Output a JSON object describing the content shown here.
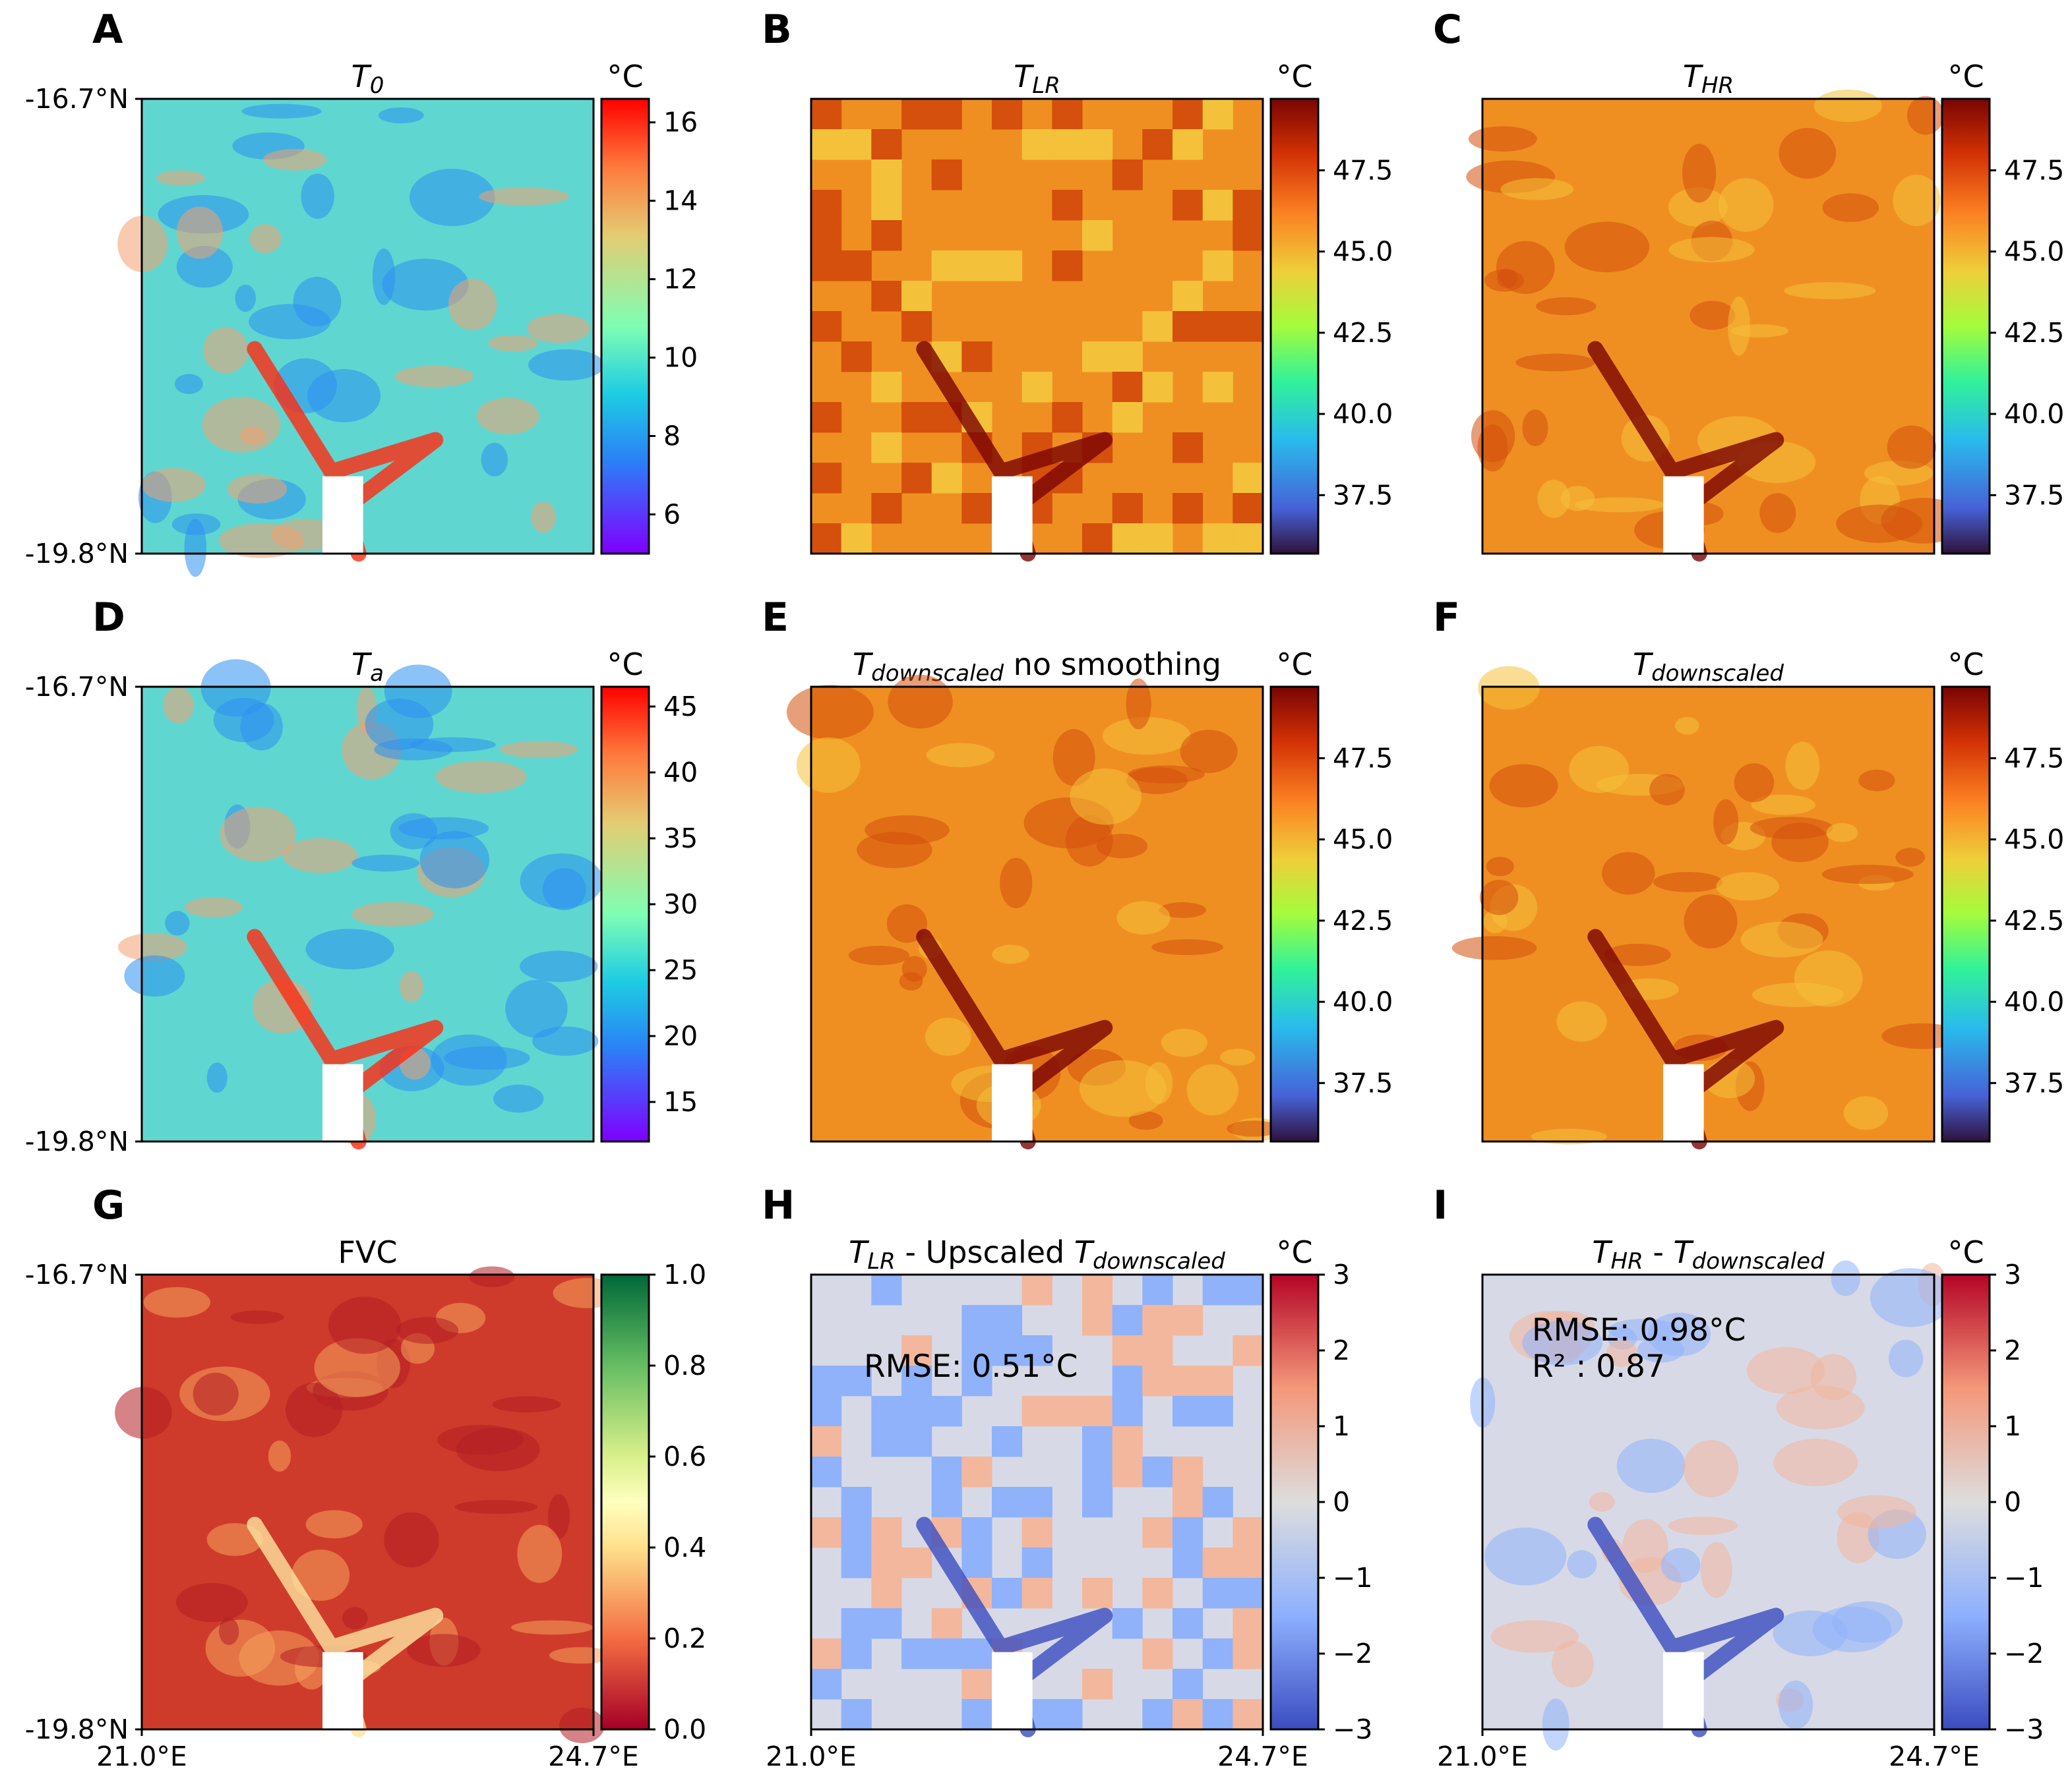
{
  "chart_data": [
    {
      "type": "heatmap",
      "panel": "A",
      "title": "T",
      "title_sub": "0",
      "colormap": "rainbow",
      "unit": "°C",
      "colorbar_ticks": [
        "16",
        "14",
        "12",
        "10",
        "8",
        "6"
      ],
      "colorbar_range": [
        5,
        16.6
      ],
      "ylabels": [
        "-16.7°N",
        "-19.8°N"
      ],
      "xlabels": []
    },
    {
      "type": "heatmap",
      "panel": "B",
      "title": "T",
      "title_sub": "LR",
      "colormap": "turbo",
      "unit": "°C",
      "colorbar_ticks": [
        "47.5",
        "45.0",
        "42.5",
        "40.0",
        "37.5"
      ],
      "colorbar_range": [
        35.7,
        49.7
      ],
      "ylabels": [],
      "xlabels": []
    },
    {
      "type": "heatmap",
      "panel": "C",
      "title": "T",
      "title_sub": "HR",
      "colormap": "turbo",
      "unit": "°C",
      "colorbar_ticks": [
        "47.5",
        "45.0",
        "42.5",
        "40.0",
        "37.5"
      ],
      "colorbar_range": [
        35.7,
        49.7
      ],
      "ylabels": [],
      "xlabels": []
    },
    {
      "type": "heatmap",
      "panel": "D",
      "title": "T",
      "title_sub": "a",
      "colormap": "rainbow",
      "unit": "°C",
      "colorbar_ticks": [
        "45",
        "40",
        "35",
        "30",
        "25",
        "20",
        "15"
      ],
      "colorbar_range": [
        12,
        46.5
      ],
      "ylabels": [
        "-16.7°N",
        "-19.8°N"
      ],
      "xlabels": []
    },
    {
      "type": "heatmap",
      "panel": "E",
      "title": "T",
      "title_sub": "downscaled",
      "title_suffix": " no smoothing",
      "colormap": "turbo",
      "unit": "°C",
      "colorbar_ticks": [
        "47.5",
        "45.0",
        "42.5",
        "40.0",
        "37.5"
      ],
      "colorbar_range": [
        35.7,
        49.7
      ],
      "ylabels": [],
      "xlabels": []
    },
    {
      "type": "heatmap",
      "panel": "F",
      "title": "T",
      "title_sub": "downscaled",
      "colormap": "turbo",
      "unit": "°C",
      "colorbar_ticks": [
        "47.5",
        "45.0",
        "42.5",
        "40.0",
        "37.5"
      ],
      "colorbar_range": [
        35.7,
        49.7
      ],
      "ylabels": [],
      "xlabels": []
    },
    {
      "type": "heatmap",
      "panel": "G",
      "title": "FVC",
      "colormap": "RdYlGn",
      "unit": "",
      "colorbar_ticks": [
        "1.0",
        "0.8",
        "0.6",
        "0.4",
        "0.2",
        "0.0"
      ],
      "colorbar_range": [
        0,
        1
      ],
      "ylabels": [
        "-16.7°N",
        "-19.8°N"
      ],
      "xlabels": [
        "21.0°E",
        "24.7°E"
      ]
    },
    {
      "type": "heatmap",
      "panel": "H",
      "title": "T",
      "title_sub": "LR",
      "title_mid": " - Upscaled ",
      "title2": "T",
      "title2_sub": "downscaled",
      "colormap": "coolwarm",
      "unit": "°C",
      "colorbar_ticks": [
        "3",
        "2",
        "1",
        "0",
        "−1",
        "−2",
        "−3"
      ],
      "colorbar_range": [
        -3,
        3
      ],
      "annotation": [
        "RMSE: 0.51°C"
      ],
      "ylabels": [],
      "xlabels": [
        "21.0°E",
        "24.7°E"
      ]
    },
    {
      "type": "heatmap",
      "panel": "I",
      "title": "T",
      "title_sub": "HR",
      "title_mid": " - ",
      "title2": "T",
      "title2_sub": "downscaled",
      "colormap": "coolwarm",
      "unit": "°C",
      "colorbar_ticks": [
        "3",
        "2",
        "1",
        "0",
        "−1",
        "−2",
        "−3"
      ],
      "colorbar_range": [
        -3,
        3
      ],
      "annotation": [
        "RMSE: 0.98°C",
        "R² : 0.87"
      ],
      "ylabels": [],
      "xlabels": [
        "21.0°E",
        "24.7°E"
      ]
    }
  ]
}
